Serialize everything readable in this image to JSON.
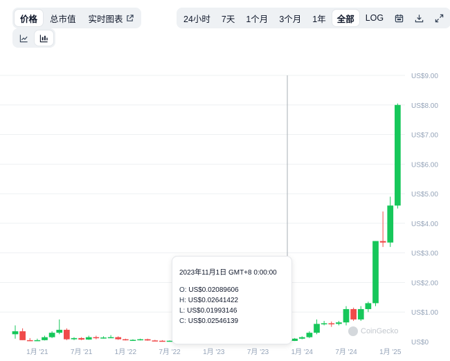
{
  "view_tabs": [
    {
      "label": "价格",
      "active": true
    },
    {
      "label": "总市值",
      "active": false
    },
    {
      "label": "实时图表",
      "active": false,
      "icon": "external-link-icon"
    }
  ],
  "range_tabs": [
    {
      "label": "24小时",
      "active": false
    },
    {
      "label": "7天",
      "active": false
    },
    {
      "label": "1个月",
      "active": false
    },
    {
      "label": "3个月",
      "active": false
    },
    {
      "label": "1年",
      "active": false
    },
    {
      "label": "全部",
      "active": true
    },
    {
      "label": "LOG",
      "active": false
    }
  ],
  "tool_icons": [
    "calendar-icon",
    "download-icon",
    "fullscreen-icon"
  ],
  "chart_type_icons": [
    {
      "icon": "line-chart-icon",
      "active": false
    },
    {
      "icon": "candlestick-chart-icon",
      "active": true
    }
  ],
  "tooltip": {
    "date": "2023年11月1日 GMT+8 0:00:00",
    "o_label": "O:",
    "o_value": "US$0.02089606",
    "h_label": "H:",
    "h_value": "US$0.02641422",
    "l_label": "L:",
    "l_value": "US$0.01993146",
    "c_label": "C:",
    "c_value": "US$0.02546139"
  },
  "watermark": "CoinGecko",
  "colors": {
    "up": "#16c75a",
    "down": "#f04a4a",
    "crosshair": "#a8aeb5",
    "grid": "#eef0f2"
  },
  "chart_data": {
    "type": "candlestick",
    "y_unit_prefix": "US$",
    "ylim": [
      0,
      9
    ],
    "y_ticks": [
      {
        "value": 0,
        "label": "US$0"
      },
      {
        "value": 1,
        "label": "US$1.00"
      },
      {
        "value": 2,
        "label": "US$2.00"
      },
      {
        "value": 3,
        "label": "US$3.00"
      },
      {
        "value": 4,
        "label": "US$4.00"
      },
      {
        "value": 5,
        "label": "US$5.00"
      },
      {
        "value": 6,
        "label": "US$6.00"
      },
      {
        "value": 7,
        "label": "US$7.00"
      },
      {
        "value": 8,
        "label": "US$8.00"
      },
      {
        "value": 9,
        "label": "US$9.00"
      }
    ],
    "x_ticks": [
      {
        "date": "2021-01",
        "label": "1月 '21"
      },
      {
        "date": "2021-07",
        "label": "7月 '21"
      },
      {
        "date": "2022-01",
        "label": "1月 '22"
      },
      {
        "date": "2022-07",
        "label": "7月 '22"
      },
      {
        "date": "2023-01",
        "label": "1月 '23"
      },
      {
        "date": "2023-07",
        "label": "7月 '23"
      },
      {
        "date": "2024-01",
        "label": "1月 '24"
      },
      {
        "date": "2024-07",
        "label": "7月 '24"
      },
      {
        "date": "2025-01",
        "label": "1月 '25"
      }
    ],
    "x_range": [
      "2020-10",
      "2025-03"
    ],
    "crosshair_date": "2023-11",
    "grid": true,
    "candles": [
      {
        "date": "2020-10",
        "open": 0.25,
        "high": 0.55,
        "low": 0.1,
        "close": 0.35
      },
      {
        "date": "2020-11",
        "open": 0.35,
        "high": 0.45,
        "low": 0.05,
        "close": 0.05
      },
      {
        "date": "2020-12",
        "open": 0.05,
        "high": 0.12,
        "low": 0.02,
        "close": 0.03
      },
      {
        "date": "2021-01",
        "open": 0.03,
        "high": 0.1,
        "low": 0.02,
        "close": 0.05
      },
      {
        "date": "2021-02",
        "open": 0.05,
        "high": 0.2,
        "low": 0.04,
        "close": 0.15
      },
      {
        "date": "2021-03",
        "open": 0.15,
        "high": 0.35,
        "low": 0.12,
        "close": 0.3
      },
      {
        "date": "2021-04",
        "open": 0.3,
        "high": 0.75,
        "low": 0.25,
        "close": 0.4
      },
      {
        "date": "2021-05",
        "open": 0.4,
        "high": 0.45,
        "low": 0.05,
        "close": 0.08
      },
      {
        "date": "2021-06",
        "open": 0.08,
        "high": 0.15,
        "low": 0.05,
        "close": 0.12
      },
      {
        "date": "2021-07",
        "open": 0.12,
        "high": 0.15,
        "low": 0.05,
        "close": 0.07
      },
      {
        "date": "2021-08",
        "open": 0.07,
        "high": 0.2,
        "low": 0.06,
        "close": 0.15
      },
      {
        "date": "2021-09",
        "open": 0.15,
        "high": 0.2,
        "low": 0.08,
        "close": 0.12
      },
      {
        "date": "2021-10",
        "open": 0.12,
        "high": 0.18,
        "low": 0.1,
        "close": 0.14
      },
      {
        "date": "2021-11",
        "open": 0.14,
        "high": 0.22,
        "low": 0.12,
        "close": 0.15
      },
      {
        "date": "2021-12",
        "open": 0.15,
        "high": 0.18,
        "low": 0.06,
        "close": 0.08
      },
      {
        "date": "2022-01",
        "open": 0.08,
        "high": 0.1,
        "low": 0.04,
        "close": 0.05
      },
      {
        "date": "2022-02",
        "open": 0.05,
        "high": 0.08,
        "low": 0.03,
        "close": 0.06
      },
      {
        "date": "2022-03",
        "open": 0.06,
        "high": 0.1,
        "low": 0.04,
        "close": 0.08
      },
      {
        "date": "2022-04",
        "open": 0.08,
        "high": 0.1,
        "low": 0.03,
        "close": 0.04
      },
      {
        "date": "2022-05",
        "open": 0.04,
        "high": 0.06,
        "low": 0.02,
        "close": 0.03
      },
      {
        "date": "2022-06",
        "open": 0.03,
        "high": 0.05,
        "low": 0.02,
        "close": 0.025
      },
      {
        "date": "2022-07",
        "open": 0.025,
        "high": 0.04,
        "low": 0.02,
        "close": 0.03
      },
      {
        "date": "2023-10",
        "open": 0.018,
        "high": 0.025,
        "low": 0.015,
        "close": 0.021
      },
      {
        "date": "2023-11",
        "open": 0.02089606,
        "high": 0.02641422,
        "low": 0.01993146,
        "close": 0.02546139
      },
      {
        "date": "2023-12",
        "open": 0.025,
        "high": 0.12,
        "low": 0.02,
        "close": 0.1
      },
      {
        "date": "2024-01",
        "open": 0.1,
        "high": 0.18,
        "low": 0.08,
        "close": 0.15
      },
      {
        "date": "2024-02",
        "open": 0.15,
        "high": 0.35,
        "low": 0.12,
        "close": 0.3
      },
      {
        "date": "2024-03",
        "open": 0.3,
        "high": 0.75,
        "low": 0.25,
        "close": 0.6
      },
      {
        "date": "2024-04",
        "open": 0.6,
        "high": 0.7,
        "low": 0.55,
        "close": 0.62
      },
      {
        "date": "2024-05",
        "open": 0.62,
        "high": 0.68,
        "low": 0.5,
        "close": 0.6
      },
      {
        "date": "2024-06",
        "open": 0.6,
        "high": 0.7,
        "low": 0.55,
        "close": 0.65
      },
      {
        "date": "2024-07",
        "open": 0.65,
        "high": 1.2,
        "low": 0.55,
        "close": 1.1
      },
      {
        "date": "2024-08",
        "open": 1.1,
        "high": 1.15,
        "low": 0.7,
        "close": 0.75
      },
      {
        "date": "2024-09",
        "open": 0.75,
        "high": 1.2,
        "low": 0.7,
        "close": 1.1
      },
      {
        "date": "2024-10",
        "open": 1.1,
        "high": 1.35,
        "low": 1.0,
        "close": 1.3
      },
      {
        "date": "2024-11",
        "open": 1.3,
        "high": 3.4,
        "low": 1.2,
        "close": 3.4
      },
      {
        "date": "2024-12",
        "open": 3.4,
        "high": 4.4,
        "low": 3.2,
        "close": 3.35
      },
      {
        "date": "2025-01",
        "open": 3.35,
        "high": 4.9,
        "low": 3.2,
        "close": 4.6
      },
      {
        "date": "2025-02",
        "open": 4.6,
        "high": 8.05,
        "low": 4.5,
        "close": 8.0
      }
    ]
  }
}
